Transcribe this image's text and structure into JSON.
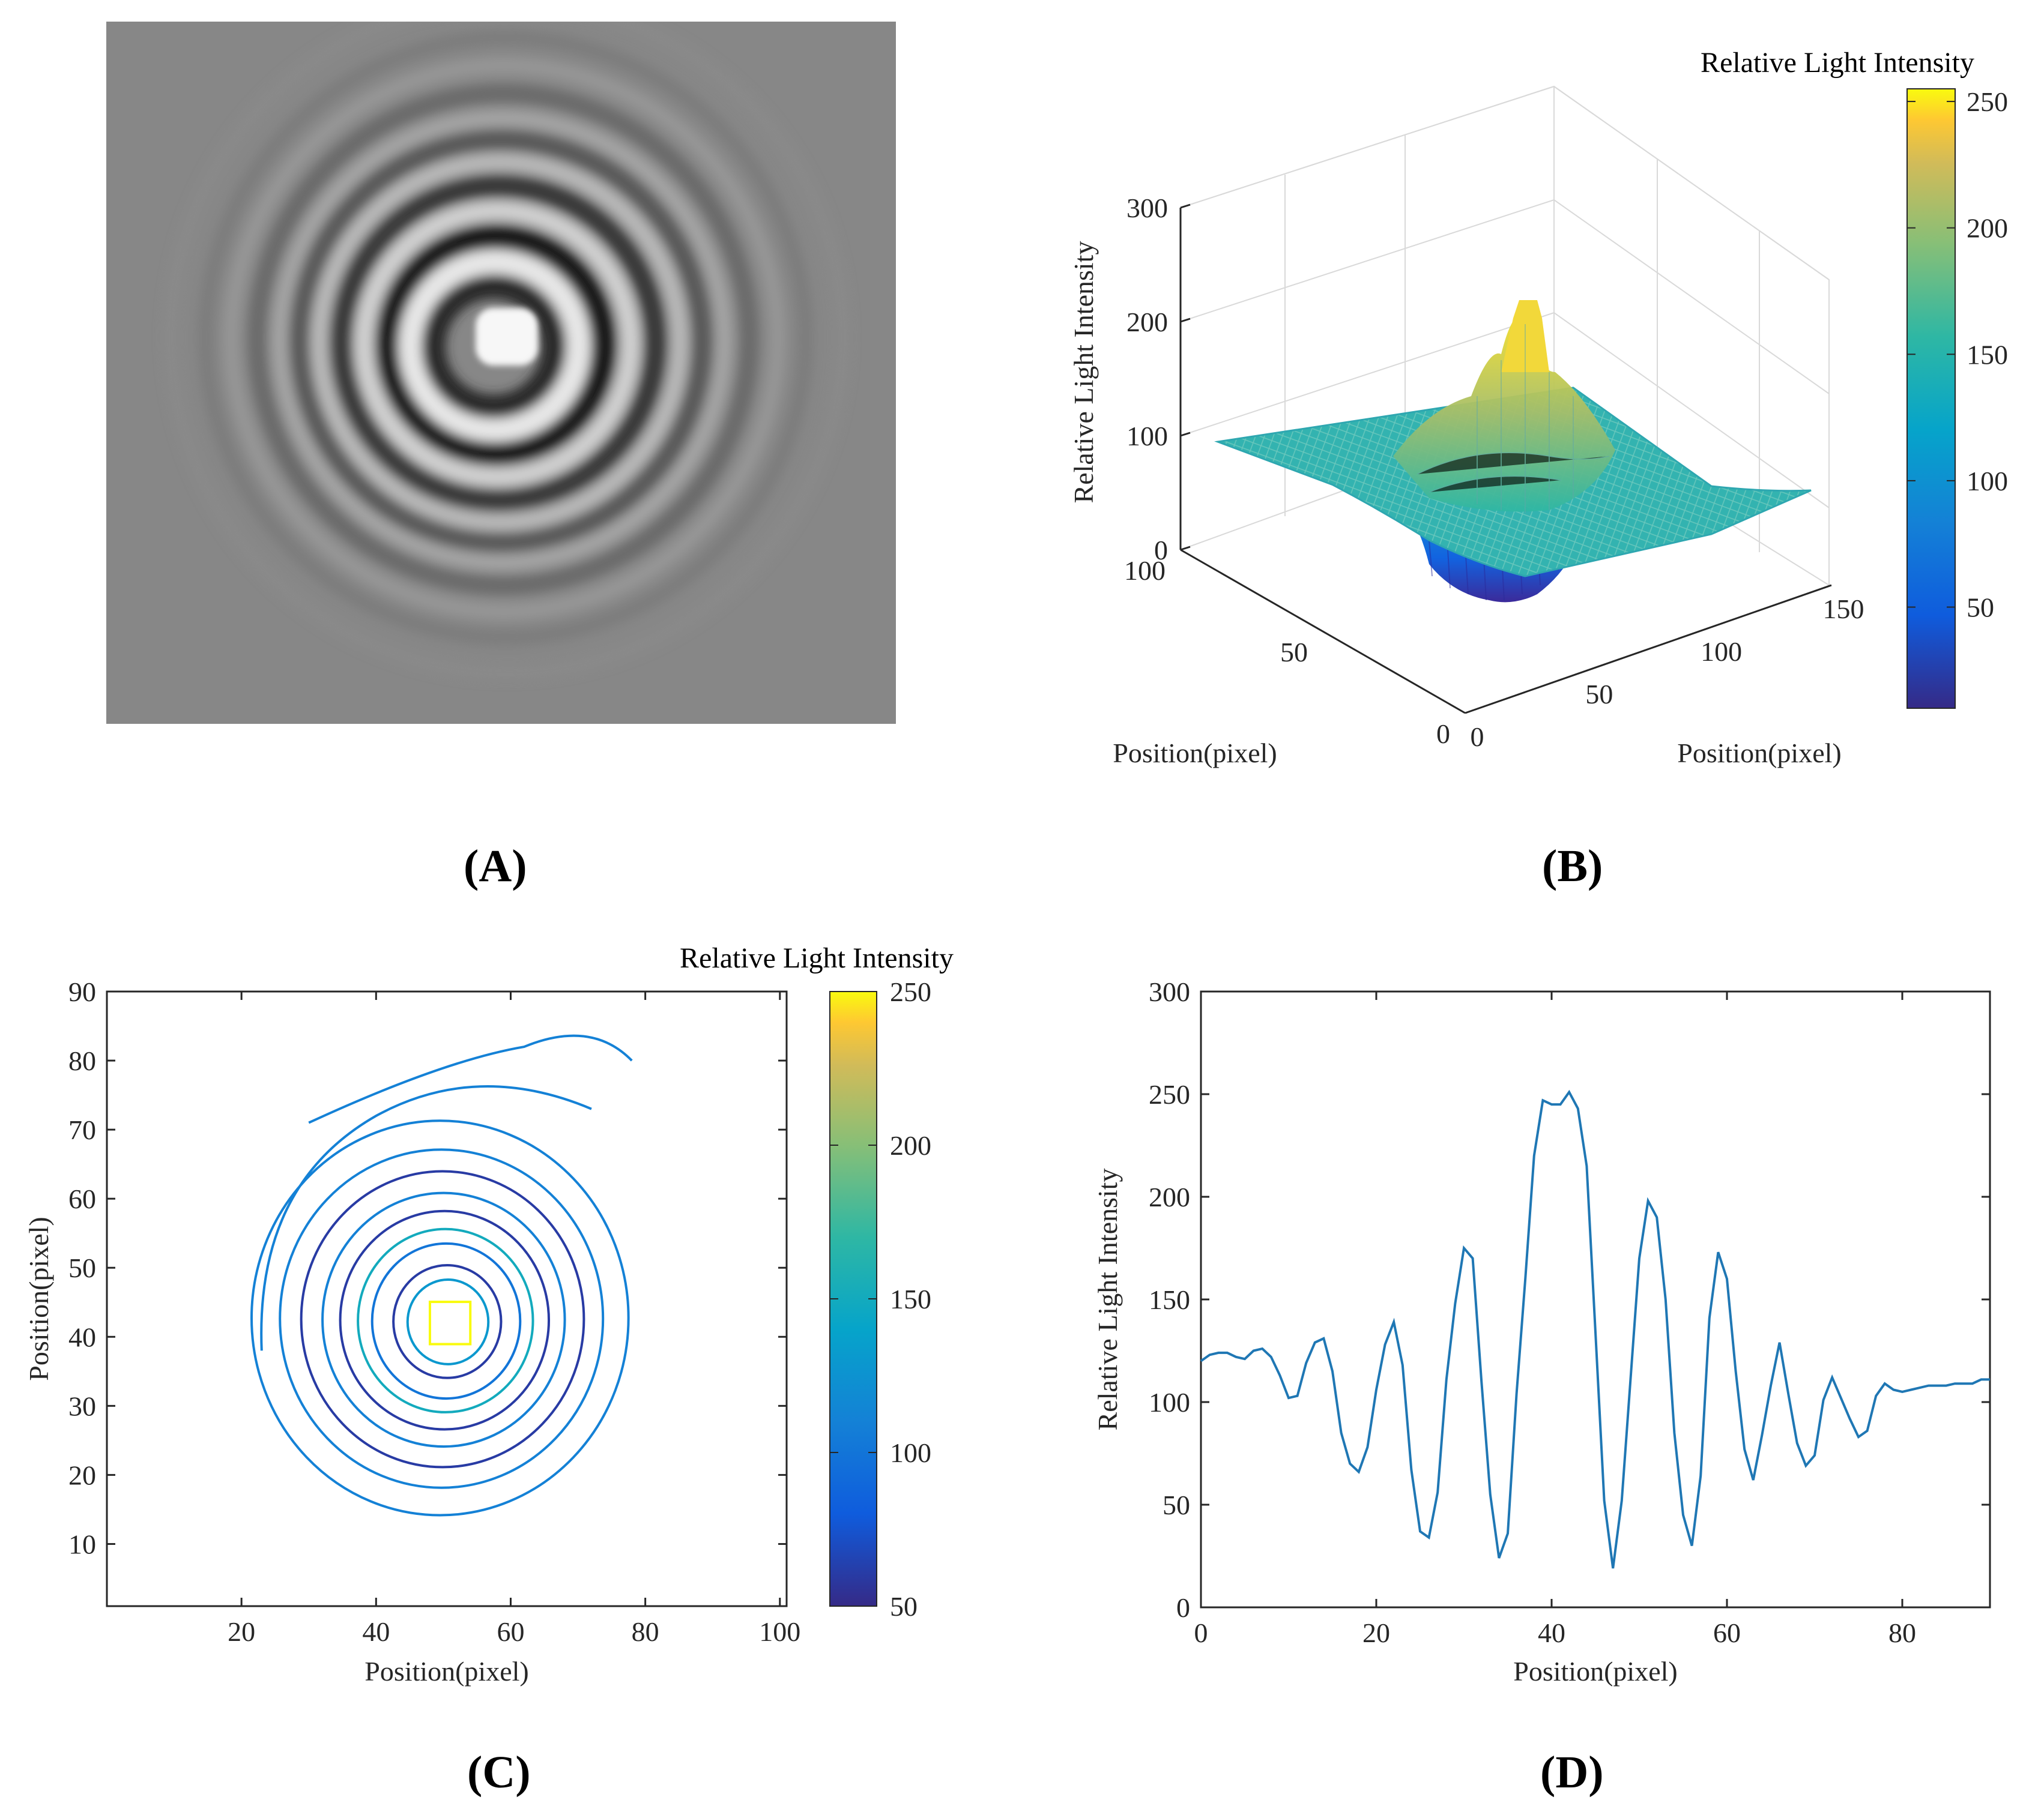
{
  "panels": {
    "a": {
      "label": "A"
    },
    "b": {
      "label": "B"
    },
    "c": {
      "label": "C"
    },
    "d": {
      "label": "D"
    }
  },
  "chart_data": [
    {
      "id": "A",
      "type": "image",
      "description_label": "interferogram"
    },
    {
      "id": "B",
      "type": "surface",
      "colorbar": {
        "title": "Relative Light Intensity",
        "ticks": [
          50,
          100,
          150,
          200,
          250
        ],
        "range": [
          10,
          255
        ]
      },
      "zlabel": "Relative Light Intensity",
      "zticks": [
        0,
        100,
        200,
        300
      ],
      "xlabel": "Position(pixel)",
      "xticks": [
        0,
        50,
        100
      ],
      "ylabel": "Position(pixel)",
      "yticks": [
        0,
        50,
        100,
        150
      ]
    },
    {
      "id": "C",
      "type": "contour",
      "colorbar": {
        "title": "Relative Light Intensity",
        "ticks": [
          50,
          100,
          150,
          200,
          250
        ],
        "range": [
          50,
          250
        ]
      },
      "xlabel": "Position(pixel)",
      "ylabel": "Position(pixel)",
      "xlim": [
        0,
        101
      ],
      "ylim": [
        1,
        90
      ],
      "xticks": [
        20,
        40,
        60,
        80,
        100
      ],
      "yticks": [
        10,
        20,
        30,
        40,
        50,
        60,
        70,
        80,
        90
      ],
      "center": [
        51,
        42
      ],
      "rings": [
        {
          "r": 3,
          "level": 250
        },
        {
          "r": 6,
          "level": 130
        },
        {
          "r": 8,
          "level": 60
        },
        {
          "r": 11,
          "level": 100
        },
        {
          "r": 13,
          "level": 150
        },
        {
          "r": 15.5,
          "level": 60
        },
        {
          "r": 18,
          "level": 110
        },
        {
          "r": 21,
          "level": 60
        },
        {
          "r": 24,
          "level": 110
        },
        {
          "r": 28,
          "level": 110
        }
      ]
    },
    {
      "id": "D",
      "type": "line",
      "xlabel": "Position(pixel)",
      "ylabel": "Relative Light Intensity",
      "xlim": [
        0,
        90
      ],
      "ylim": [
        0,
        300
      ],
      "xticks": [
        0,
        20,
        40,
        60,
        80
      ],
      "yticks": [
        0,
        50,
        100,
        150,
        200,
        250,
        300
      ],
      "series": [
        {
          "name": "profile",
          "color": "#1f77b4",
          "x": [
            0,
            1,
            2,
            3,
            4,
            5,
            6,
            7,
            8,
            9,
            10,
            11,
            12,
            13,
            14,
            15,
            16,
            17,
            18,
            19,
            20,
            21,
            22,
            23,
            24,
            25,
            26,
            27,
            28,
            29,
            30,
            31,
            32,
            33,
            34,
            35,
            36,
            37,
            38,
            39,
            40,
            41,
            42,
            43,
            44,
            45,
            46,
            47,
            48,
            49,
            50,
            51,
            52,
            53,
            54,
            55,
            56,
            57,
            58,
            59,
            60,
            61,
            62,
            63,
            64,
            65,
            66,
            67,
            68,
            69,
            70,
            71,
            72,
            73,
            74,
            75,
            76,
            77,
            78,
            79,
            80,
            81,
            82,
            83,
            84,
            85,
            86,
            87,
            88,
            89,
            90
          ],
          "y": [
            120,
            123,
            124,
            124,
            122,
            121,
            125,
            126,
            122,
            113,
            102,
            103,
            119,
            129,
            131,
            115,
            85,
            70,
            66,
            78,
            106,
            128,
            139,
            118,
            67,
            37,
            34,
            56,
            111,
            148,
            175,
            170,
            110,
            55,
            24,
            36,
            104,
            160,
            220,
            247,
            245,
            245,
            251,
            243,
            215,
            134,
            52,
            19,
            52,
            111,
            170,
            198,
            190,
            150,
            85,
            45,
            30,
            64,
            141,
            173,
            160,
            115,
            77,
            62,
            84,
            108,
            129,
            104,
            80,
            69,
            74,
            101,
            112,
            102,
            92,
            83,
            86,
            103,
            109,
            106,
            105,
            106,
            107,
            108,
            108,
            108,
            109,
            109,
            109,
            111,
            111
          ]
        }
      ]
    }
  ]
}
